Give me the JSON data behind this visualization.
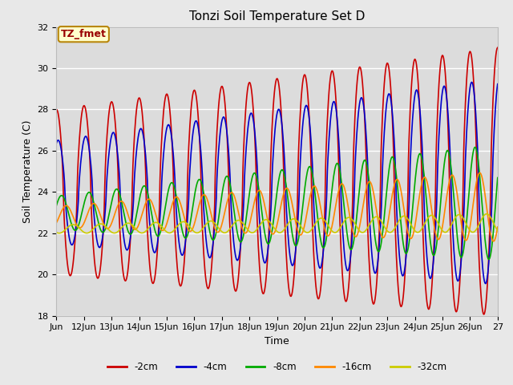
{
  "title": "Tonzi Soil Temperature Set D",
  "xlabel": "Time",
  "ylabel": "Soil Temperature (C)",
  "annotation_text": "TZ_fmet",
  "annotation_bg": "#ffffcc",
  "annotation_border": "#b8860b",
  "ylim": [
    18,
    32
  ],
  "yticks": [
    18,
    20,
    22,
    24,
    26,
    28,
    30,
    32
  ],
  "fig_bg": "#e8e8e8",
  "plot_bg": "#dcdcdc",
  "line_colors": {
    "-2cm": "#cc0000",
    "-4cm": "#0000cc",
    "-8cm": "#00aa00",
    "-16cm": "#ff8800",
    "-32cm": "#cccc00"
  },
  "xtick_labels": [
    "Jun",
    "12Jun",
    "13Jun",
    "14Jun",
    "15Jun",
    "16Jun",
    "17Jun",
    "18Jun",
    "19Jun",
    "20Jun",
    "21Jun",
    "22Jun",
    "23Jun",
    "24Jun",
    "25Jun",
    "26Jun",
    "27"
  ]
}
